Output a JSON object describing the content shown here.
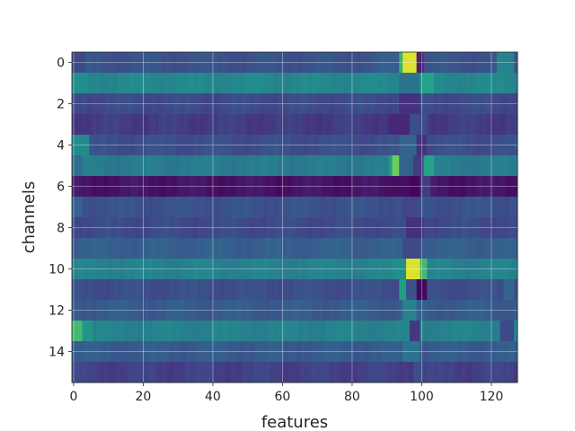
{
  "chart_data": {
    "type": "heatmap",
    "colormap": "viridis",
    "xlabel": "features",
    "ylabel": "channels",
    "x_range": [
      -0.5,
      127.5
    ],
    "y_range": [
      -0.5,
      15.5
    ],
    "y_inverted": true,
    "x_ticks": [
      0,
      20,
      40,
      60,
      80,
      100,
      120
    ],
    "y_ticks": [
      0,
      2,
      4,
      6,
      8,
      10,
      12,
      14
    ],
    "grid": true,
    "n_features": 128,
    "channels": [
      {
        "channel": 0,
        "base": 0.32,
        "segments": [
          {
            "x": [
              0,
              4
            ],
            "v": 0.28
          },
          {
            "x": [
              88,
              94
            ],
            "v": 0.38
          },
          {
            "x": [
              94,
              95
            ],
            "v": 0.78
          },
          {
            "x": [
              95,
              99
            ],
            "v": 0.97
          },
          {
            "x": [
              99,
              101
            ],
            "v": 0.12
          },
          {
            "x": [
              122,
              127
            ],
            "v": 0.55
          }
        ]
      },
      {
        "channel": 1,
        "base": 0.58,
        "segments": [
          {
            "x": [
              0,
              3
            ],
            "v": 0.62
          },
          {
            "x": [
              94,
              100
            ],
            "v": 0.48
          },
          {
            "x": [
              100,
              104
            ],
            "v": 0.72
          }
        ]
      },
      {
        "channel": 2,
        "base": 0.28,
        "segments": [
          {
            "x": [
              94,
              100
            ],
            "v": 0.18
          }
        ]
      },
      {
        "channel": 3,
        "base": 0.22,
        "segments": [
          {
            "x": [
              91,
              97
            ],
            "v": 0.14
          },
          {
            "x": [
              97,
              102
            ],
            "v": 0.3
          }
        ]
      },
      {
        "channel": 4,
        "base": 0.3,
        "segments": [
          {
            "x": [
              0,
              5
            ],
            "v": 0.6
          },
          {
            "x": [
              94,
              99
            ],
            "v": 0.4
          },
          {
            "x": [
              99,
              102
            ],
            "v": 0.18
          }
        ]
      },
      {
        "channel": 5,
        "base": 0.52,
        "segments": [
          {
            "x": [
              0,
              3
            ],
            "v": 0.45
          },
          {
            "x": [
              91,
              92
            ],
            "v": 0.7
          },
          {
            "x": [
              92,
              94
            ],
            "v": 0.86
          },
          {
            "x": [
              94,
              98
            ],
            "v": 0.4
          },
          {
            "x": [
              98,
              101
            ],
            "v": 0.22
          },
          {
            "x": [
              101,
              104
            ],
            "v": 0.72
          }
        ]
      },
      {
        "channel": 6,
        "base": 0.07,
        "segments": [
          {
            "x": [
              90,
              97
            ],
            "v": 0.05
          },
          {
            "x": [
              97,
              100
            ],
            "v": 0.02
          },
          {
            "x": [
              100,
              103
            ],
            "v": 0.22
          }
        ]
      },
      {
        "channel": 7,
        "base": 0.32,
        "segments": [
          {
            "x": [
              0,
              3
            ],
            "v": 0.4
          },
          {
            "x": [
              95,
              100
            ],
            "v": 0.26
          }
        ]
      },
      {
        "channel": 8,
        "base": 0.28,
        "segments": [
          {
            "x": [
              96,
              101
            ],
            "v": 0.18
          }
        ]
      },
      {
        "channel": 9,
        "base": 0.38,
        "segments": [
          {
            "x": [
              95,
              100
            ],
            "v": 0.28
          }
        ]
      },
      {
        "channel": 10,
        "base": 0.55,
        "segments": [
          {
            "x": [
              92,
              96
            ],
            "v": 0.62
          },
          {
            "x": [
              96,
              100
            ],
            "v": 0.97
          },
          {
            "x": [
              100,
              102
            ],
            "v": 0.8
          }
        ]
      },
      {
        "channel": 11,
        "base": 0.3,
        "segments": [
          {
            "x": [
              94,
              96
            ],
            "v": 0.7
          },
          {
            "x": [
              96,
              99
            ],
            "v": 0.32
          },
          {
            "x": [
              99,
              102
            ],
            "v": 0.03
          },
          {
            "x": [
              124,
              127
            ],
            "v": 0.42
          }
        ]
      },
      {
        "channel": 12,
        "base": 0.36,
        "segments": [
          {
            "x": [
              95,
              99
            ],
            "v": 0.55
          }
        ]
      },
      {
        "channel": 13,
        "base": 0.55,
        "segments": [
          {
            "x": [
              0,
              3
            ],
            "v": 0.8
          },
          {
            "x": [
              3,
              6
            ],
            "v": 0.65
          },
          {
            "x": [
              97,
              100
            ],
            "v": 0.2
          },
          {
            "x": [
              123,
              127
            ],
            "v": 0.28
          }
        ]
      },
      {
        "channel": 14,
        "base": 0.36,
        "segments": [
          {
            "x": [
              95,
              100
            ],
            "v": 0.48
          }
        ]
      },
      {
        "channel": 15,
        "base": 0.24,
        "segments": [
          {
            "x": [
              98,
              101
            ],
            "v": 0.3
          },
          {
            "x": [
              0,
              2
            ],
            "v": 0.3
          }
        ]
      }
    ]
  }
}
